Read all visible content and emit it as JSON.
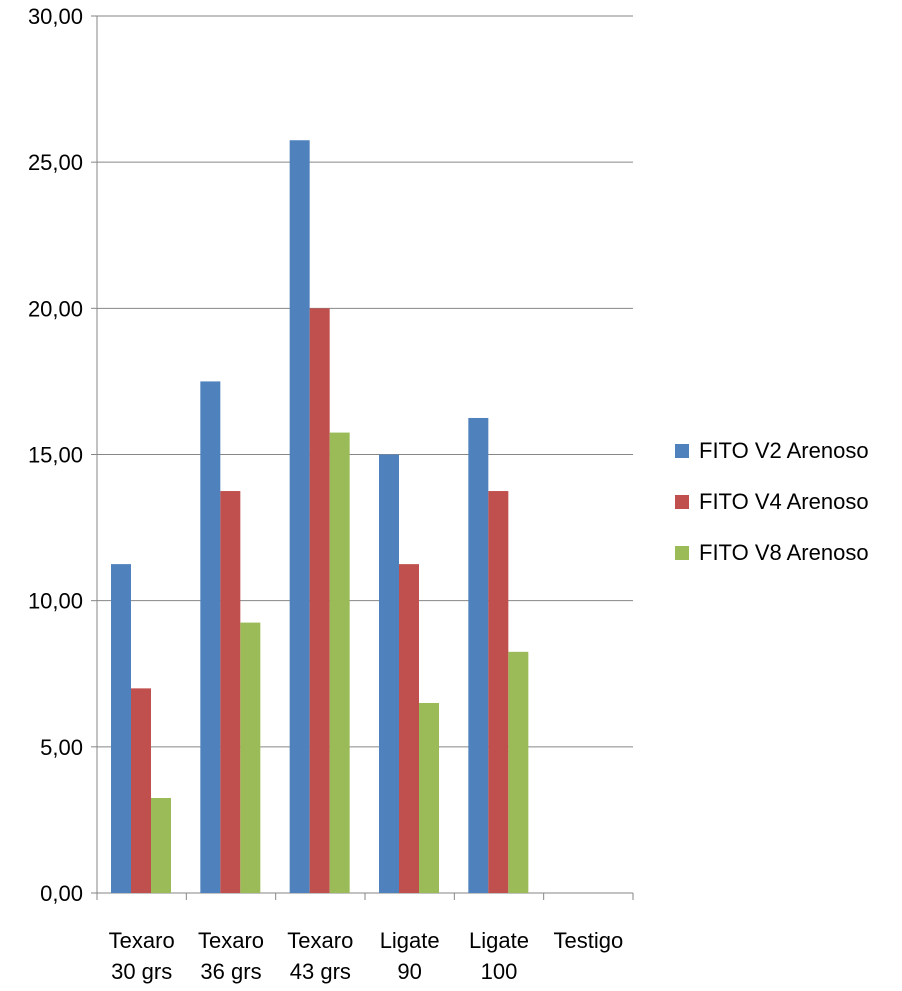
{
  "chart_data": {
    "type": "bar",
    "categories": [
      [
        "Texaro",
        "30 grs"
      ],
      [
        "Texaro",
        "36 grs"
      ],
      [
        "Texaro",
        "43 grs"
      ],
      [
        "Ligate",
        "90"
      ],
      [
        "Ligate",
        "100"
      ],
      [
        "Testigo"
      ]
    ],
    "series": [
      {
        "name": "FITO V2 Arenoso",
        "color": "#4F81BD",
        "values": [
          11.25,
          17.5,
          25.75,
          15.0,
          16.25,
          null
        ]
      },
      {
        "name": "FITO V4 Arenoso",
        "color": "#C0504D",
        "values": [
          7.0,
          13.75,
          20.0,
          11.25,
          13.75,
          null
        ]
      },
      {
        "name": "FITO V8 Arenoso",
        "color": "#9BBB59",
        "values": [
          3.25,
          9.25,
          15.75,
          6.5,
          8.25,
          null
        ]
      }
    ],
    "yticks": [
      "0,00",
      "5,00",
      "10,00",
      "15,00",
      "20,00",
      "25,00",
      "30,00"
    ],
    "ylim": [
      0,
      30
    ],
    "grid": true,
    "legend_position": "right",
    "title": "",
    "xlabel": "",
    "ylabel": ""
  }
}
